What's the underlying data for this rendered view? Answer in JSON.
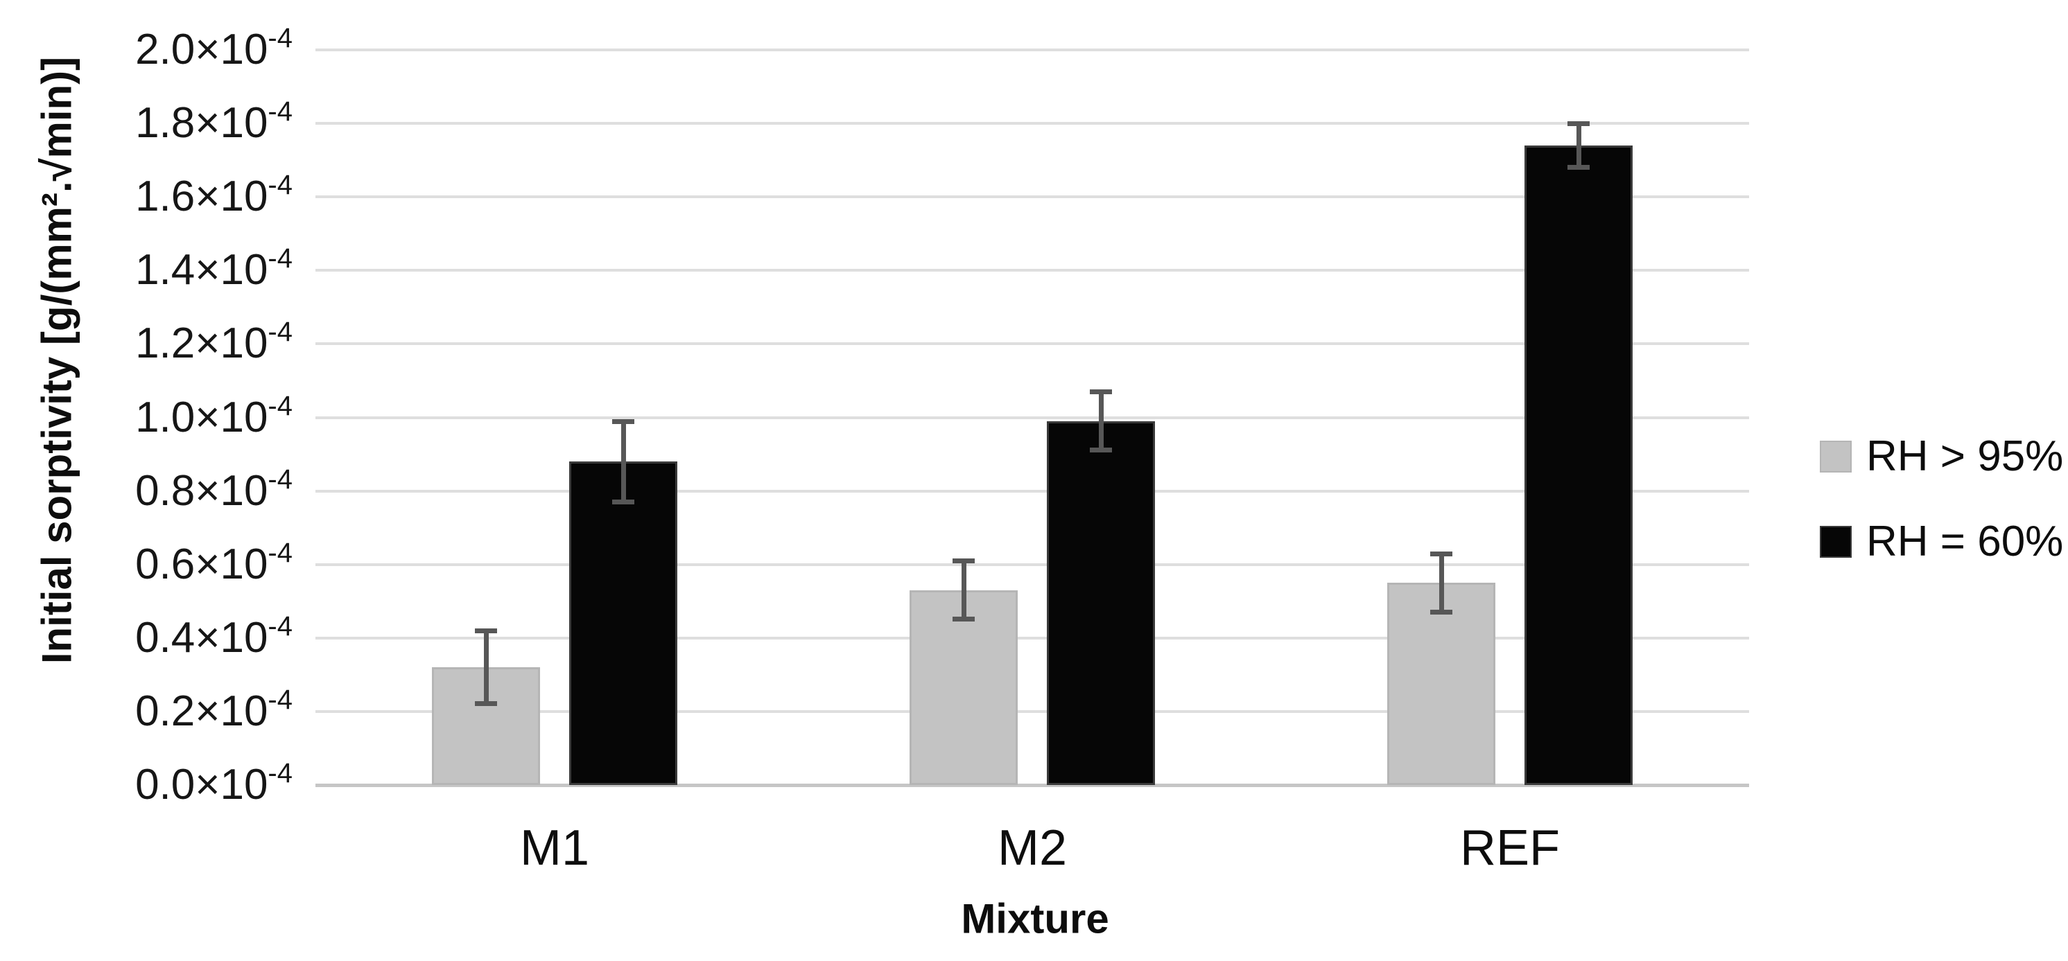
{
  "chart_data": {
    "type": "bar",
    "title": "",
    "categories": [
      "M1",
      "M2",
      "REF"
    ],
    "series": [
      {
        "name": "RH > 95%",
        "color": "#c3c3c3",
        "border_color": "#b5b5b5",
        "values": [
          0.32,
          0.53,
          0.55
        ],
        "errors": [
          0.1,
          0.08,
          0.08
        ]
      },
      {
        "name": "RH = 60%",
        "color": "#060606",
        "border_color": "#3a3a3a",
        "values": [
          0.88,
          0.99,
          1.74
        ],
        "errors": [
          0.11,
          0.08,
          0.06
        ]
      }
    ],
    "values_scale_note": "all bar values and errors are ×10⁻⁴",
    "xlabel": "Mixture",
    "ylabel": "Initial sorptivity [g/(mm².√min)]",
    "ylim": [
      0.0,
      2.0
    ],
    "ytick_step": 0.2,
    "ytick_mantissas": [
      "2.0",
      "1.8",
      "1.6",
      "1.4",
      "1.2",
      "1.0",
      "0.8",
      "0.6",
      "0.4",
      "0.2",
      "0.0"
    ],
    "ytick_base": "×10",
    "ytick_exponent": "-4",
    "grid": true,
    "legend_position": "right",
    "error_bar_color": "#575757",
    "gridline_color": "#dedede",
    "axis_line_color": "#c6c6c6",
    "text_color": "#141414"
  }
}
